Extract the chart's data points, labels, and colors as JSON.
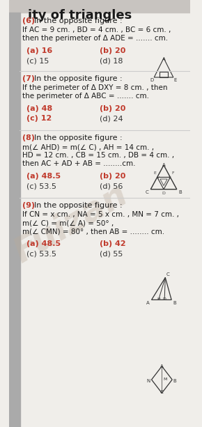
{
  "bg_color": "#f0eeea",
  "title_text": "ity of triangles",
  "title_color": "#1a1a1a",
  "header_bg": "#d0ccc8",
  "questions": [
    {
      "num": "(6)",
      "intro": "In the opposite figure :",
      "lines": [
        "If AC = 9 cm. , BD = 4 cm. , BC = 6 cm. ,",
        "then the perimeter of Δ ADE = ....... cm."
      ],
      "choices": [
        [
          "(a) 16",
          "(b) 20"
        ],
        [
          "(c) 15",
          "(d) 18"
        ]
      ]
    },
    {
      "num": "(7)",
      "intro": "In the opposite figure :",
      "lines": [
        "If the perimeter of Δ DXY = 8 cm. , then",
        "the perimeter of Δ ABC = ....... cm."
      ],
      "choices": [
        [
          "(a) 48",
          "(b) 20"
        ],
        [
          "(c) 12",
          "(d) 24"
        ]
      ]
    },
    {
      "num": "(8)",
      "intro": "In the opposite figure :",
      "lines": [
        "m(∠ AHD) = m(∠ C) , AH = 14 cm. ,",
        "HD = 12 cm. , CB = 15 cm. , DB = 4 cm. ,",
        "then AC + AD + AB = ........cm."
      ],
      "choices": [
        [
          "(a) 48.5",
          "(b) 20"
        ],
        [
          "(c) 53.5",
          "(d) 56"
        ]
      ]
    },
    {
      "num": "(9)",
      "intro": "In the opposite figure :",
      "lines": [
        "If CN = x cm. , NA = 5 x cm. , MN = 7 cm. ,",
        "m(∠ C) = m(∠ A) = 50° ,",
        "m(∠ CMN) = 80° , then AB = ........ cm."
      ],
      "choices": [
        [
          "(a) 48.5",
          "(b) 42"
        ],
        [
          "(c) 53.5",
          "(d) 55"
        ]
      ]
    }
  ],
  "num_color": "#c0392b",
  "choice_a_color": "#c0392b",
  "choice_b_color": "#c0392b",
  "choice_c_color": "#333333",
  "choice_d_color": "#333333",
  "text_color": "#1a1a1a",
  "watermark_text": "Fuizan",
  "watermark_color": "#bbaa99",
  "left_bar_color": "#888888",
  "divider_color": "#cccccc"
}
